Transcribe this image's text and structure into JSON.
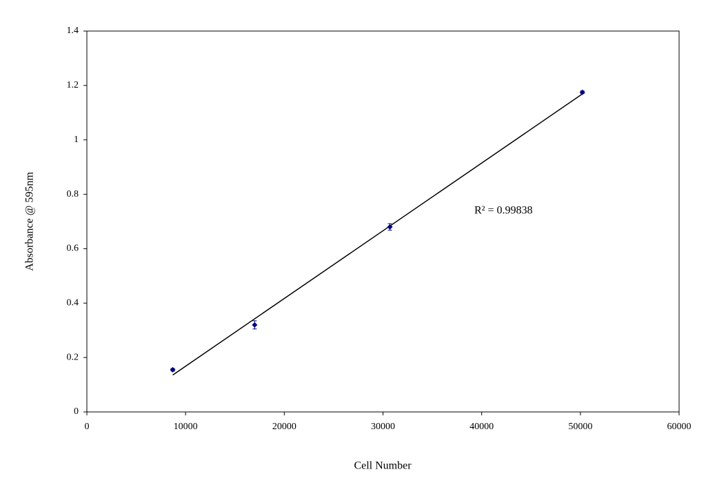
{
  "chart_data": {
    "type": "scatter",
    "x_label": "Cell Number",
    "y_label": "Absorbance @ 595nm",
    "annotation": "R² = 0.99838",
    "x": [
      8700,
      17000,
      30700,
      50200
    ],
    "series": [
      {
        "color": "#000080",
        "values": [
          0.155,
          0.32,
          0.68,
          1.175
        ],
        "errors": [
          0.005,
          0.015,
          0.012,
          0.005
        ]
      }
    ],
    "trendline": {
      "type": "linear",
      "color": "#000000"
    },
    "xlim": [
      0,
      60000
    ],
    "xticks": [
      0,
      10000,
      20000,
      30000,
      40000,
      50000,
      60000
    ],
    "ylim": [
      0,
      1.4
    ],
    "yticks": [
      0,
      0.2,
      0.4,
      0.6,
      0.8,
      1,
      1.2,
      1.4
    ],
    "grid": false
  }
}
